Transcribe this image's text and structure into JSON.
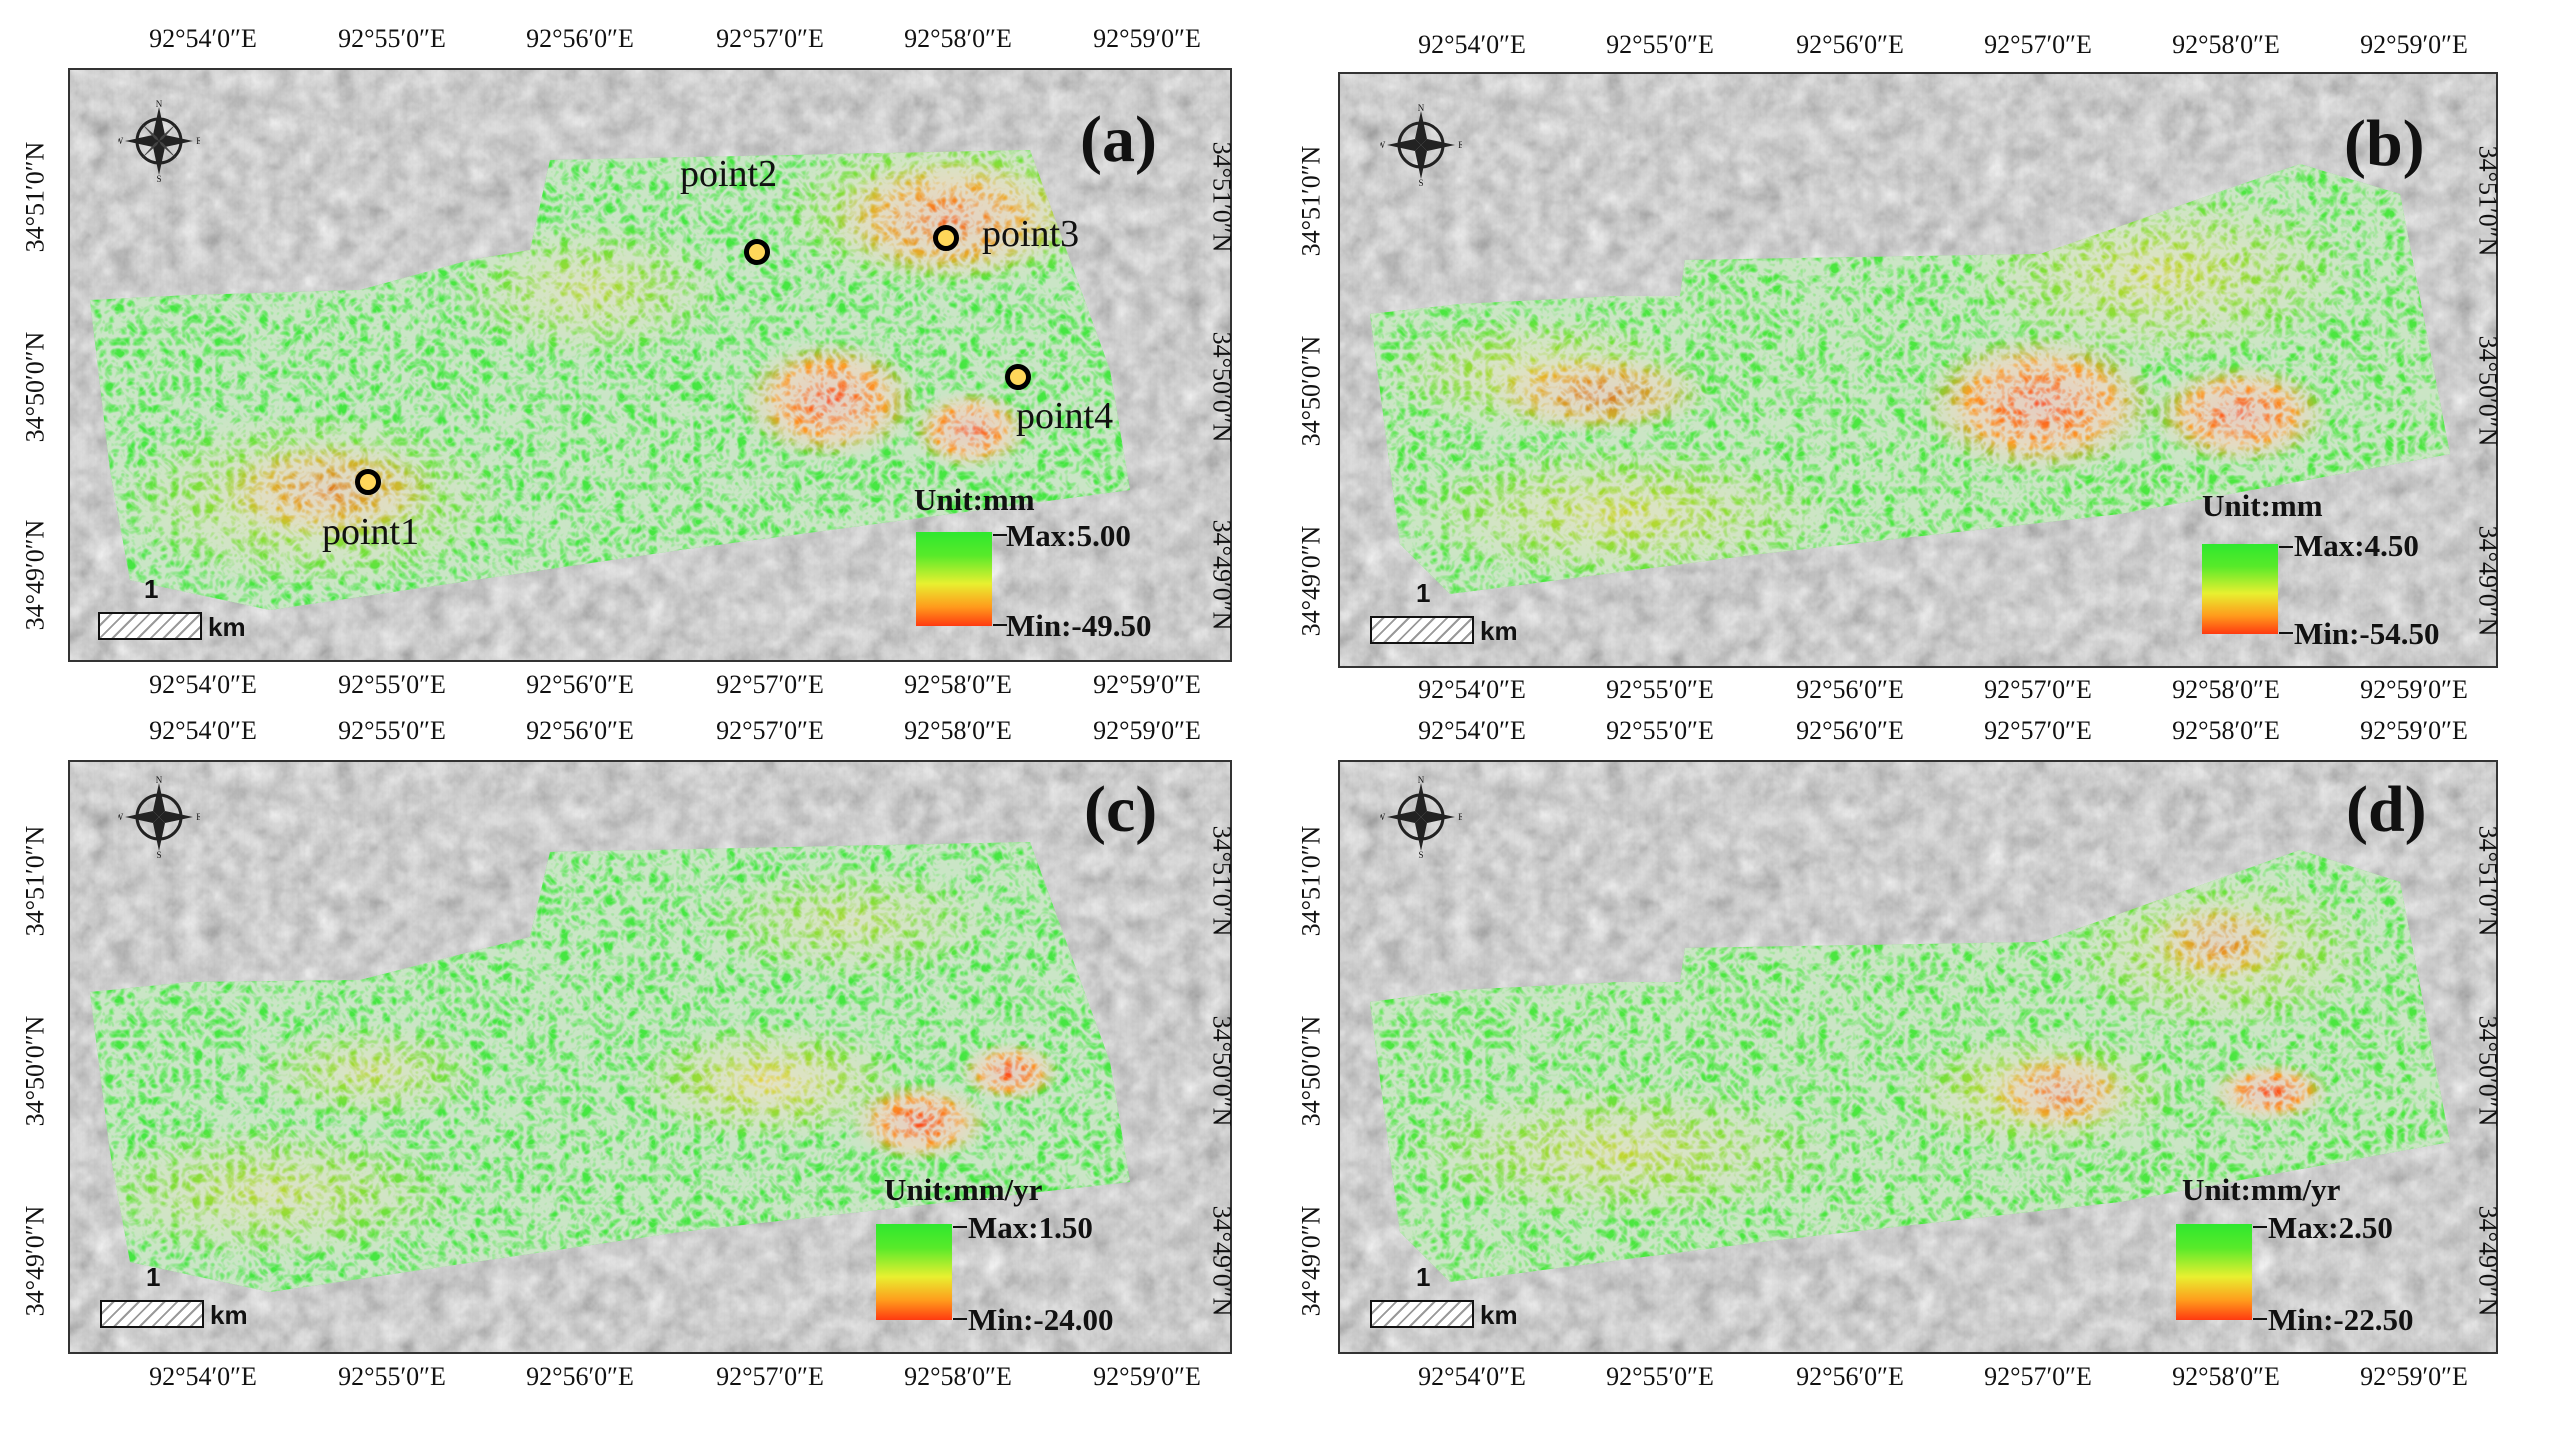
{
  "panels": [
    {
      "id": "a",
      "label": "(a)",
      "top_ticks": [
        "92°54′0″E",
        "92°55′0″E",
        "92°56′0″E",
        "92°57′0″E",
        "92°58′0″E",
        "92°59′0″E"
      ],
      "bottom_ticks": [
        "92°54′0″E",
        "92°55′0″E",
        "92°56′0″E",
        "92°57′0″E",
        "92°58′0″E",
        "92°59′0″E"
      ],
      "left_ticks": [
        "34°51′0″N",
        "34°50′0″N",
        "34°49′0″N"
      ],
      "right_ticks": [
        "34°51′0″N",
        "34°50′0″N",
        "34°49′0″N"
      ],
      "legend": {
        "title": "Unit:mm",
        "max": "Max:5.00",
        "min": "Min:-49.50"
      },
      "scale": {
        "number": "1",
        "unit": "km"
      },
      "points": [
        {
          "label": "point1"
        },
        {
          "label": "point2"
        },
        {
          "label": "point3"
        },
        {
          "label": "point4"
        }
      ]
    },
    {
      "id": "b",
      "label": "(b)",
      "top_ticks": [
        "92°54′0″E",
        "92°55′0″E",
        "92°56′0″E",
        "92°57′0″E",
        "92°58′0″E",
        "92°59′0″E"
      ],
      "bottom_ticks": [
        "92°54′0″E",
        "92°55′0″E",
        "92°56′0″E",
        "92°57′0″E",
        "92°58′0″E",
        "92°59′0″E"
      ],
      "left_ticks": [
        "34°51′0″N",
        "34°50′0″N",
        "34°49′0″N"
      ],
      "right_ticks": [
        "34°51′0″N",
        "34°50′0″N",
        "34°49′0″N"
      ],
      "legend": {
        "title": "Unit:mm",
        "max": "Max:4.50",
        "min": "Min:-54.50"
      },
      "scale": {
        "number": "1",
        "unit": "km"
      }
    },
    {
      "id": "c",
      "label": "(c)",
      "top_ticks": [
        "92°54′0″E",
        "92°55′0″E",
        "92°56′0″E",
        "92°57′0″E",
        "92°58′0″E",
        "92°59′0″E"
      ],
      "bottom_ticks": [
        "92°54′0″E",
        "92°55′0″E",
        "92°56′0″E",
        "92°57′0″E",
        "92°58′0″E",
        "92°59′0″E"
      ],
      "left_ticks": [
        "34°51′0″N",
        "34°50′0″N",
        "34°49′0″N"
      ],
      "right_ticks": [
        "34°51′0″N",
        "34°50′0″N",
        "34°49′0″N"
      ],
      "legend": {
        "title": "Unit:mm/yr",
        "max": "Max:1.50",
        "min": "Min:-24.00"
      },
      "scale": {
        "number": "1",
        "unit": "km"
      }
    },
    {
      "id": "d",
      "label": "(d)",
      "top_ticks": [
        "92°54′0″E",
        "92°55′0″E",
        "92°56′0″E",
        "92°57′0″E",
        "92°58′0″E",
        "92°59′0″E"
      ],
      "bottom_ticks": [
        "92°54′0″E",
        "92°55′0″E",
        "92°56′0″E",
        "92°57′0″E",
        "92°58′0″E",
        "92°59′0″E"
      ],
      "left_ticks": [
        "34°51′0″N",
        "34°50′0″N",
        "34°49′0″N"
      ],
      "right_ticks": [
        "34°51′0″N",
        "34°50′0″N",
        "34°49′0″N"
      ],
      "legend": {
        "title": "Unit:mm/yr",
        "max": "Max:2.50",
        "min": "Min:-22.50"
      },
      "scale": {
        "number": "1",
        "unit": "km"
      }
    }
  ],
  "compass": {
    "n": "N",
    "s": "S",
    "e": "E",
    "w": "W"
  },
  "colors": {
    "stable": "#2ee82e",
    "moderate": "#e8f030",
    "subsidence": "#ff3a10",
    "hillshade": "#bdbdbd"
  }
}
